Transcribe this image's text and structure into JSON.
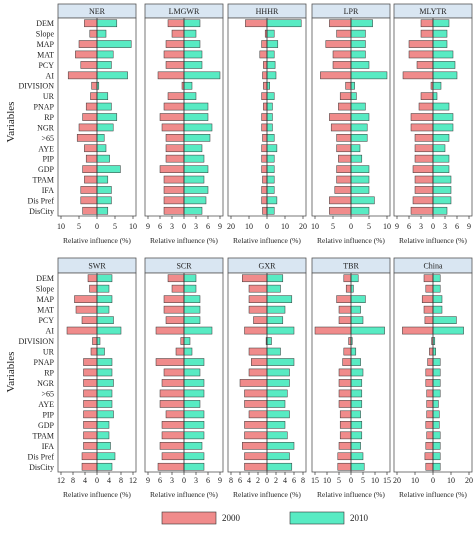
{
  "chart_data": {
    "type": "bar",
    "ylabel": "Variables",
    "xlabel": "Relative influence (%)",
    "variables": [
      "DEM",
      "Slope",
      "MAP",
      "MAT",
      "PCY",
      "AI",
      "DIVISION",
      "UR",
      "PNAP",
      "RP",
      "NGR",
      ">65",
      "AYE",
      "PIP",
      "GDP",
      "TPAM",
      "IFA",
      "Dis Pref",
      "DisCity"
    ],
    "legend": [
      {
        "label": "2000",
        "color": "#f08b8b"
      },
      {
        "label": "2010",
        "color": "#58ebc3"
      }
    ],
    "panels": [
      {
        "title": "NER",
        "row": 0,
        "max": 10,
        "ticks": [
          "10",
          "5",
          "0",
          "5",
          "10"
        ],
        "s2000": [
          3.5,
          2,
          5,
          6,
          4.5,
          8,
          1.5,
          1.8,
          3,
          4,
          5,
          5.5,
          3.5,
          3,
          4,
          3.5,
          4.5,
          4.5,
          4
        ],
        "s2010": [
          5.5,
          2.5,
          9.5,
          4.5,
          4,
          8.5,
          0.5,
          3,
          4,
          5.5,
          4.5,
          2,
          2.5,
          3.5,
          6.5,
          3,
          4,
          4,
          3
        ]
      },
      {
        "title": "LMGWR",
        "row": 0,
        "max": 9,
        "ticks": [
          "9",
          "6",
          "3",
          "0",
          "3",
          "6",
          "9"
        ],
        "s2000": [
          4,
          3,
          4.5,
          5,
          4.5,
          6.5,
          0.5,
          4,
          5,
          6,
          5.5,
          4.5,
          4.5,
          4.5,
          6,
          5,
          5,
          5,
          5
        ],
        "s2010": [
          4,
          3,
          4,
          4.5,
          4.5,
          9,
          2,
          3,
          6,
          6,
          7,
          6.5,
          4.5,
          5,
          6,
          5,
          6,
          5.5,
          4.5
        ]
      },
      {
        "title": "HHHR",
        "row": 0,
        "max": 20,
        "ticks": [
          "20",
          "10",
          "0",
          "10",
          "20"
        ],
        "s2000": [
          12,
          1,
          3,
          4,
          2,
          2.5,
          2,
          3,
          2,
          3,
          3,
          2.5,
          3,
          3,
          3,
          2.5,
          3,
          3,
          2.5
        ],
        "s2010": [
          19,
          4,
          6,
          4,
          4.5,
          5,
          1.5,
          4,
          3,
          3,
          3,
          4,
          5.5,
          4,
          4,
          4,
          4,
          5.5,
          4
        ]
      },
      {
        "title": "LPR",
        "row": 0,
        "max": 10,
        "ticks": [
          "10",
          "5",
          "0",
          "5",
          "10"
        ],
        "s2000": [
          6,
          4,
          7,
          5,
          5,
          8.5,
          1.5,
          3,
          3.5,
          6,
          5.5,
          4,
          4,
          3.5,
          4,
          4,
          4.5,
          6,
          6
        ],
        "s2010": [
          6,
          4,
          4,
          4,
          5,
          10,
          1,
          1.5,
          4,
          5,
          4.5,
          4.5,
          2.5,
          3,
          5,
          5,
          5,
          6.5,
          5
        ]
      },
      {
        "title": "MLYTR",
        "row": 0,
        "max": 9,
        "ticks": [
          "9",
          "6",
          "3",
          "0",
          "3",
          "6",
          "9"
        ],
        "s2000": [
          3,
          3,
          6,
          6,
          4,
          7.5,
          0.5,
          3,
          3.5,
          5.5,
          5.5,
          4.5,
          4.5,
          4.5,
          5,
          4.5,
          4.5,
          5,
          5.5
        ],
        "s2010": [
          4,
          3.5,
          3.5,
          5,
          5.5,
          6,
          2,
          1,
          4,
          5,
          5,
          4,
          3,
          4,
          4,
          4.5,
          4.5,
          4.5,
          3.5
        ]
      },
      {
        "title": "SWR",
        "row": 1,
        "max": 12,
        "ticks": [
          "12",
          "8",
          "4",
          "0",
          "4",
          "8",
          "12"
        ],
        "s2000": [
          3,
          2.5,
          7.5,
          7,
          5,
          10,
          1.5,
          2,
          4.5,
          4.5,
          4.5,
          4.5,
          4.5,
          4.5,
          4.5,
          4.5,
          4.5,
          5,
          5
        ],
        "s2010": [
          5,
          4,
          5,
          4,
          5.5,
          8,
          1,
          2.5,
          5,
          5,
          5.5,
          5,
          5,
          5.5,
          4,
          4,
          4.5,
          6,
          5
        ]
      },
      {
        "title": "SCR",
        "row": 1,
        "max": 9,
        "ticks": [
          "9",
          "6",
          "3",
          "0",
          "3",
          "6",
          "9"
        ],
        "s2000": [
          4,
          3,
          5,
          5,
          4.5,
          7,
          0.8,
          2,
          7,
          5,
          5.5,
          6,
          6,
          4.5,
          5.5,
          5.5,
          6,
          5.5,
          6.5
        ],
        "s2010": [
          3,
          3,
          4,
          4,
          4,
          7,
          1.5,
          2,
          5,
          4,
          5,
          5,
          4,
          5,
          5,
          5,
          4.5,
          5,
          5
        ]
      },
      {
        "title": "GXR",
        "row": 1,
        "max": 8,
        "ticks": [
          "8",
          "6",
          "4",
          "2",
          "0",
          "2",
          "4",
          "6",
          "8"
        ],
        "s2000": [
          5.5,
          4,
          4,
          4,
          3,
          5,
          0.2,
          4,
          3.5,
          4,
          6,
          5,
          5,
          4,
          5,
          5,
          5.5,
          5,
          5
        ],
        "s2010": [
          3.5,
          3,
          5.5,
          4,
          3.5,
          6,
          1,
          3,
          6,
          5,
          5,
          4.5,
          4,
          5,
          4,
          4.5,
          6,
          5,
          5.5
        ]
      },
      {
        "title": "TBR",
        "row": 1,
        "max": 15,
        "ticks": [
          "15",
          "10",
          "5",
          "0",
          "5",
          "10",
          "15"
        ],
        "s2000": [
          3,
          2,
          6,
          5,
          5,
          15,
          1,
          3,
          3.5,
          5,
          5,
          5,
          5,
          4.5,
          4.5,
          4.5,
          5,
          5.5,
          5.5
        ],
        "s2010": [
          3,
          1,
          6,
          4,
          5,
          14,
          0.5,
          2,
          4,
          5,
          4.5,
          4.5,
          4.5,
          4,
          4.5,
          4.5,
          4,
          5,
          5.5
        ]
      },
      {
        "title": "China",
        "row": 1,
        "max": 20,
        "ticks": [
          "20",
          "10",
          "0",
          "10",
          "20"
        ],
        "s2000": [
          5,
          4,
          6,
          5,
          4.5,
          17,
          0.8,
          2,
          3,
          4,
          4,
          3.5,
          3.5,
          3.5,
          4,
          3.5,
          4,
          4.5,
          4
        ],
        "s2010": [
          4,
          4,
          5,
          5,
          13,
          17,
          1,
          1.5,
          4,
          4,
          4,
          4,
          3,
          3.5,
          3.5,
          4,
          4,
          4,
          4
        ]
      }
    ]
  }
}
